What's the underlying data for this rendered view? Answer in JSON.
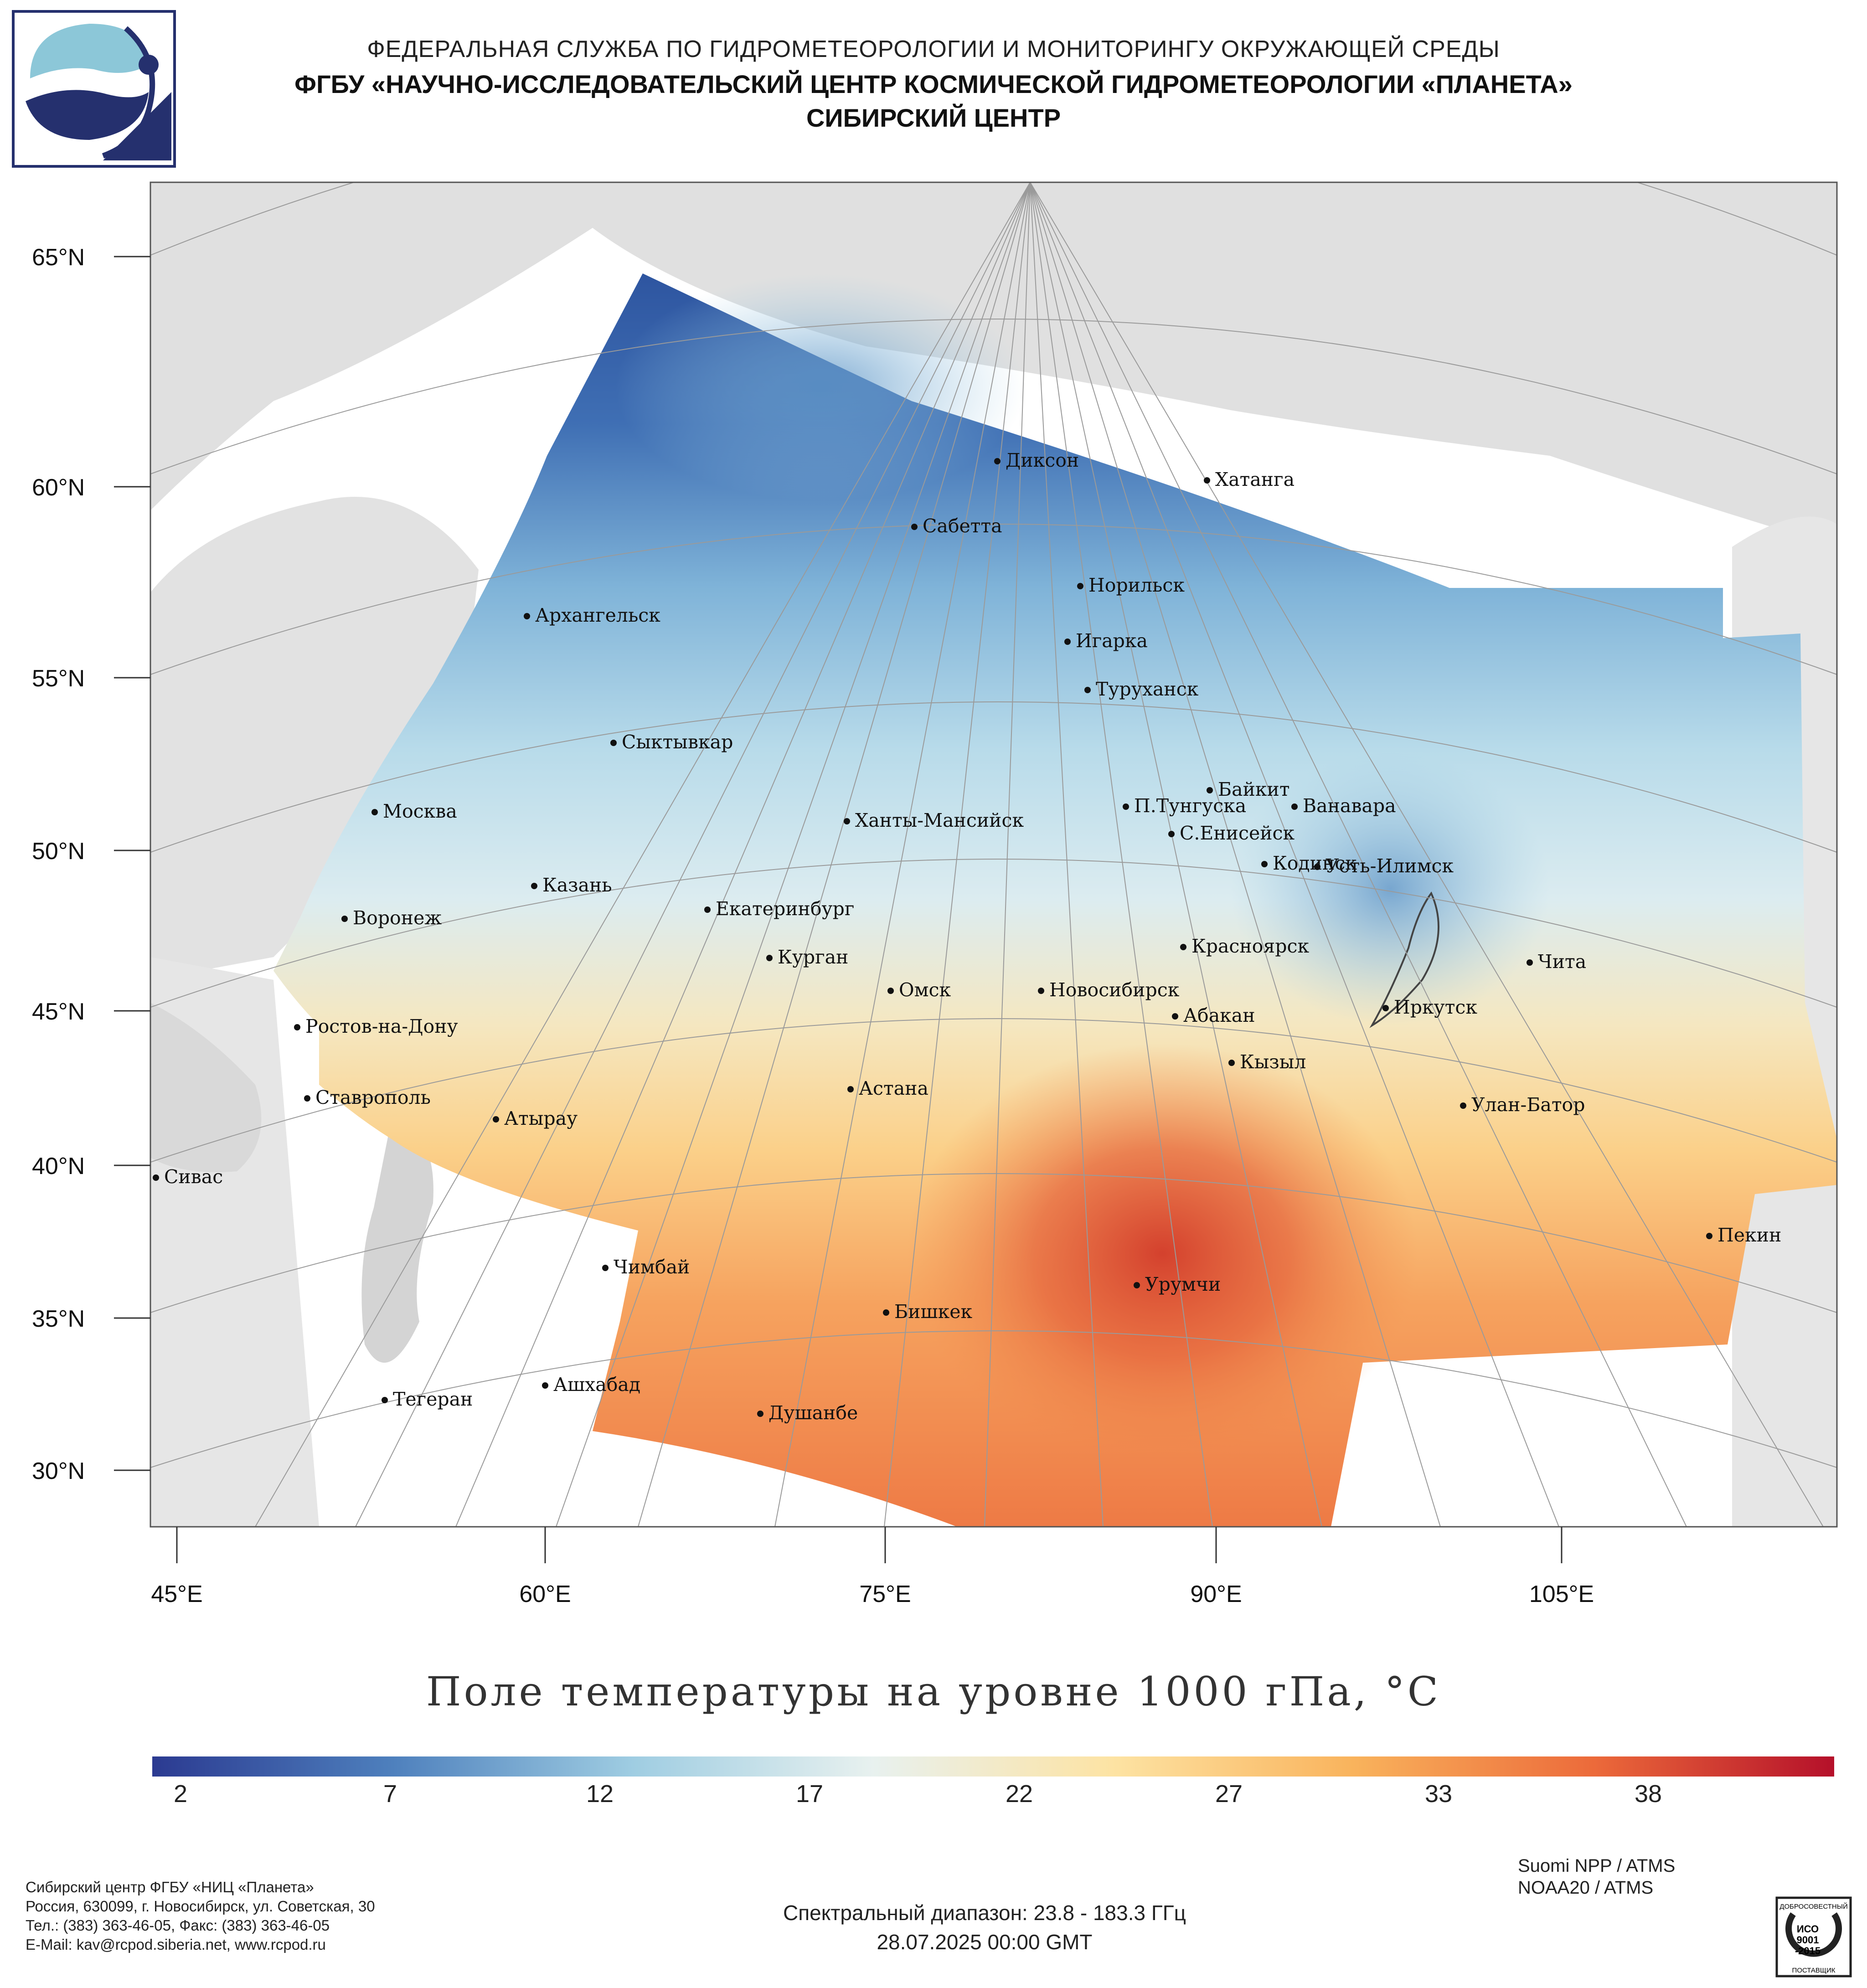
{
  "header": {
    "line1": "ФЕДЕРАЛЬНАЯ СЛУЖБА ПО ГИДРОМЕТЕОРОЛОГИИ И МОНИТОРИНГУ ОКРУЖАЮЩЕЙ СРЕДЫ",
    "line2": "ФГБУ «НАУЧНО-ИССЛЕДОВАТЕЛЬСКИЙ ЦЕНТР КОСМИЧЕСКОЙ ГИДРОМЕТЕОРОЛОГИИ «ПЛАНЕТА»",
    "line3": "СИБИРСКИЙ ЦЕНТР"
  },
  "map": {
    "lat_labels": [
      "65°N",
      "60°N",
      "55°N",
      "50°N",
      "45°N",
      "40°N",
      "35°N",
      "30°N"
    ],
    "lon_labels": [
      "45°E",
      "60°E",
      "75°E",
      "90°E",
      "105°E"
    ],
    "cities": [
      "Диксон",
      "Хатанга",
      "Сабетта",
      "Норильск",
      "Архангельск",
      "Игарка",
      "Туруханск",
      "Сыктывкар",
      "Байкит",
      "Москва",
      "П.Тунгуска",
      "Ванавара",
      "Ханты-Мансийск",
      "С.Енисейск",
      "Казань",
      "Кодинск",
      "Усть-Илимск",
      "Екатеринбург",
      "Воронеж",
      "Красноярск",
      "Курган",
      "Чита",
      "Омск",
      "Новосибирск",
      "Ростов-на-Дону",
      "Иркутск",
      "Абакан",
      "Кызыл",
      "Ставрополь",
      "Астана",
      "Улан-Батор",
      "Атырау",
      "Сивас",
      "Пекин",
      "Чимбай",
      "Урумчи",
      "Бишкек",
      "Ашхабад",
      "Тегеран",
      "Душанбе"
    ],
    "colors": {
      "land": "#e0e0e0",
      "water": "#ffffff",
      "cold": "#2c4c9c",
      "warm": "#c82228"
    }
  },
  "legend": {
    "title": "Поле температуры на уровне 1000 гПа, °С",
    "ticks": [
      "2",
      "7",
      "12",
      "17",
      "22",
      "27",
      "33",
      "38"
    ],
    "colors": [
      "#2b3a91",
      "#4e80bd",
      "#9fcde2",
      "#e8f1ef",
      "#fde3a3",
      "#f9b35c",
      "#ec6a3a",
      "#b5102a"
    ]
  },
  "footer": {
    "contact": [
      "Сибирский центр ФГБУ «НИЦ «Планета»",
      "Россия, 630099, г. Новосибирск, ул. Советская, 30",
      "Тел.: (383) 363-46-05, Факс: (383) 363-46-05",
      "E-Mail: kav@rcpod.siberia.net, www.rcpod.ru"
    ],
    "satellites": [
      "Suomi NPP / ATMS",
      "NOAA20 / ATMS"
    ],
    "spectral": "Спектральный диапазон: 23.8 - 183.3 ГГц",
    "datetime": "28.07.2025 00:00 GMT",
    "cert": [
      "ДОБРОСОВЕСТНЫЙ",
      "ИСО",
      "9001",
      "-2015",
      "ПОСТАВЩИК"
    ]
  }
}
